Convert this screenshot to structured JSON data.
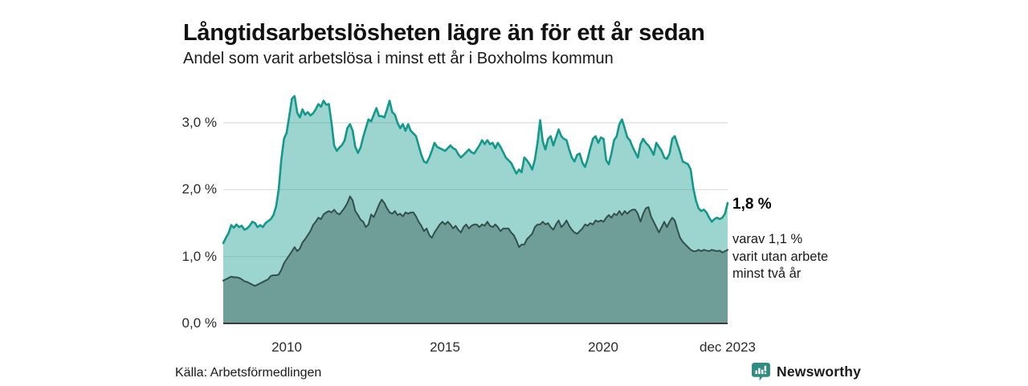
{
  "header": {
    "title": "Långtidsarbetslösheten lägre än för ett år sedan",
    "subtitle": "Andel som varit arbetslösa i minst ett år i Boxholms kommun"
  },
  "annotations": {
    "latest_total": "1,8 %",
    "latest_secondary": "varav 1,1 %\nvarit utan arbete\nminst två år"
  },
  "footer": {
    "source": "Källa: Arbetsförmedlingen",
    "brand": "Newsworthy"
  },
  "colors": {
    "accent_teal": "#12998b",
    "light_fill_apparent": "#9fd4cd",
    "dark_fill": "#6f9d97",
    "dark_line": "#32504b",
    "gridline": "#dcdcdc",
    "axis": "#3a3a3a",
    "brand_teal": "#2e8c81",
    "brand_text": "#2d7a7d",
    "text": "#1a1a1a"
  },
  "chart_data": {
    "type": "area",
    "title": "Långtidsarbetslösheten lägre än för ett år sedan",
    "subtitle": "Andel som varit arbetslösa i minst ett år i Boxholms kommun",
    "xlabel": "",
    "ylabel": "",
    "x_start_year": 2008.0,
    "x_step_months": 1,
    "x_end_label": "dec 2023",
    "ylim": [
      0,
      3.55
    ],
    "grid": true,
    "legend_position": "none",
    "yticks": [
      {
        "value": 0,
        "label": "0,0 %"
      },
      {
        "value": 1,
        "label": "1,0 %"
      },
      {
        "value": 2,
        "label": "2,0 %"
      },
      {
        "value": 3,
        "label": "3,0 %"
      }
    ],
    "xticks": [
      {
        "year": 2010.0,
        "label": "2010"
      },
      {
        "year": 2015.0,
        "label": "2015"
      },
      {
        "year": 2020.0,
        "label": "2020"
      },
      {
        "year": 2023.917,
        "label": "dec 2023"
      }
    ],
    "series": [
      {
        "name": "Andel arbetslösa minst ett år",
        "latest_label": "1,8 %",
        "line_color": "#12998b",
        "fill_color": "#149a8c",
        "fill_opacity": 0.42,
        "values": [
          1.2,
          1.28,
          1.35,
          1.47,
          1.43,
          1.48,
          1.44,
          1.46,
          1.4,
          1.42,
          1.46,
          1.52,
          1.5,
          1.44,
          1.47,
          1.44,
          1.5,
          1.53,
          1.56,
          1.62,
          1.75,
          2.0,
          2.45,
          2.76,
          2.85,
          3.1,
          3.36,
          3.4,
          3.15,
          3.08,
          3.2,
          3.12,
          3.16,
          3.11,
          3.14,
          3.2,
          3.28,
          3.24,
          3.33,
          3.27,
          3.28,
          3.0,
          2.66,
          2.58,
          2.63,
          2.67,
          2.74,
          2.92,
          2.98,
          2.88,
          2.64,
          2.55,
          2.63,
          2.79,
          2.92,
          3.05,
          3.02,
          3.12,
          3.22,
          3.1,
          3.1,
          3.08,
          3.2,
          3.33,
          3.16,
          3.12,
          3.0,
          2.92,
          2.98,
          2.88,
          2.98,
          2.88,
          2.84,
          2.8,
          2.66,
          2.52,
          2.42,
          2.4,
          2.48,
          2.58,
          2.7,
          2.64,
          2.62,
          2.6,
          2.58,
          2.62,
          2.66,
          2.62,
          2.6,
          2.53,
          2.48,
          2.52,
          2.56,
          2.6,
          2.56,
          2.54,
          2.6,
          2.66,
          2.74,
          2.68,
          2.74,
          2.68,
          2.7,
          2.62,
          2.7,
          2.64,
          2.56,
          2.48,
          2.44,
          2.4,
          2.32,
          2.24,
          2.3,
          2.26,
          2.48,
          2.44,
          2.38,
          2.3,
          2.45,
          2.7,
          3.04,
          2.72,
          2.6,
          2.76,
          2.8,
          2.66,
          2.78,
          2.9,
          2.8,
          2.76,
          2.74,
          2.6,
          2.48,
          2.42,
          2.52,
          2.54,
          2.4,
          2.34,
          2.46,
          2.62,
          2.76,
          2.8,
          2.7,
          2.78,
          2.76,
          2.44,
          2.38,
          2.54,
          2.74,
          2.8,
          2.98,
          3.05,
          2.92,
          2.78,
          2.74,
          2.64,
          2.56,
          2.48,
          2.68,
          2.76,
          2.7,
          2.66,
          2.6,
          2.52,
          2.7,
          2.64,
          2.58,
          2.48,
          2.46,
          2.54,
          2.76,
          2.8,
          2.68,
          2.56,
          2.42,
          2.4,
          2.38,
          2.3,
          2.02,
          1.84,
          1.72,
          1.68,
          1.7,
          1.66,
          1.58,
          1.52,
          1.56,
          1.58,
          1.56,
          1.58,
          1.64,
          1.8
        ]
      },
      {
        "name": "varav utan arbete minst två år",
        "latest_label": "1,1 %",
        "line_color": "#32504b",
        "fill_color": "#6f9d97",
        "fill_opacity": 1,
        "values": [
          0.64,
          0.66,
          0.68,
          0.7,
          0.69,
          0.69,
          0.68,
          0.66,
          0.63,
          0.62,
          0.6,
          0.58,
          0.56,
          0.58,
          0.6,
          0.62,
          0.64,
          0.66,
          0.71,
          0.72,
          0.72,
          0.73,
          0.8,
          0.9,
          0.96,
          1.02,
          1.08,
          1.14,
          1.08,
          1.12,
          1.21,
          1.26,
          1.32,
          1.38,
          1.47,
          1.52,
          1.58,
          1.56,
          1.63,
          1.66,
          1.68,
          1.66,
          1.7,
          1.65,
          1.63,
          1.68,
          1.73,
          1.8,
          1.9,
          1.84,
          1.68,
          1.62,
          1.55,
          1.52,
          1.44,
          1.48,
          1.63,
          1.59,
          1.68,
          1.78,
          1.85,
          1.8,
          1.72,
          1.66,
          1.64,
          1.68,
          1.62,
          1.64,
          1.6,
          1.66,
          1.64,
          1.66,
          1.66,
          1.6,
          1.52,
          1.46,
          1.38,
          1.42,
          1.32,
          1.28,
          1.36,
          1.42,
          1.48,
          1.52,
          1.48,
          1.52,
          1.48,
          1.42,
          1.46,
          1.4,
          1.36,
          1.44,
          1.48,
          1.42,
          1.46,
          1.48,
          1.48,
          1.44,
          1.48,
          1.46,
          1.52,
          1.46,
          1.44,
          1.48,
          1.44,
          1.38,
          1.42,
          1.42,
          1.42,
          1.36,
          1.32,
          1.24,
          1.14,
          1.18,
          1.18,
          1.26,
          1.3,
          1.34,
          1.44,
          1.48,
          1.48,
          1.52,
          1.48,
          1.5,
          1.44,
          1.4,
          1.48,
          1.54,
          1.44,
          1.48,
          1.54,
          1.46,
          1.4,
          1.36,
          1.34,
          1.38,
          1.42,
          1.48,
          1.46,
          1.5,
          1.48,
          1.54,
          1.52,
          1.54,
          1.52,
          1.58,
          1.62,
          1.58,
          1.64,
          1.62,
          1.68,
          1.62,
          1.68,
          1.64,
          1.68,
          1.7,
          1.7,
          1.64,
          1.52,
          1.64,
          1.72,
          1.74,
          1.6,
          1.52,
          1.44,
          1.36,
          1.44,
          1.52,
          1.44,
          1.52,
          1.58,
          1.54,
          1.4,
          1.28,
          1.22,
          1.18,
          1.14,
          1.1,
          1.08,
          1.08,
          1.1,
          1.08,
          1.1,
          1.09,
          1.08,
          1.1,
          1.09,
          1.08,
          1.09,
          1.06,
          1.08,
          1.1
        ]
      }
    ]
  }
}
